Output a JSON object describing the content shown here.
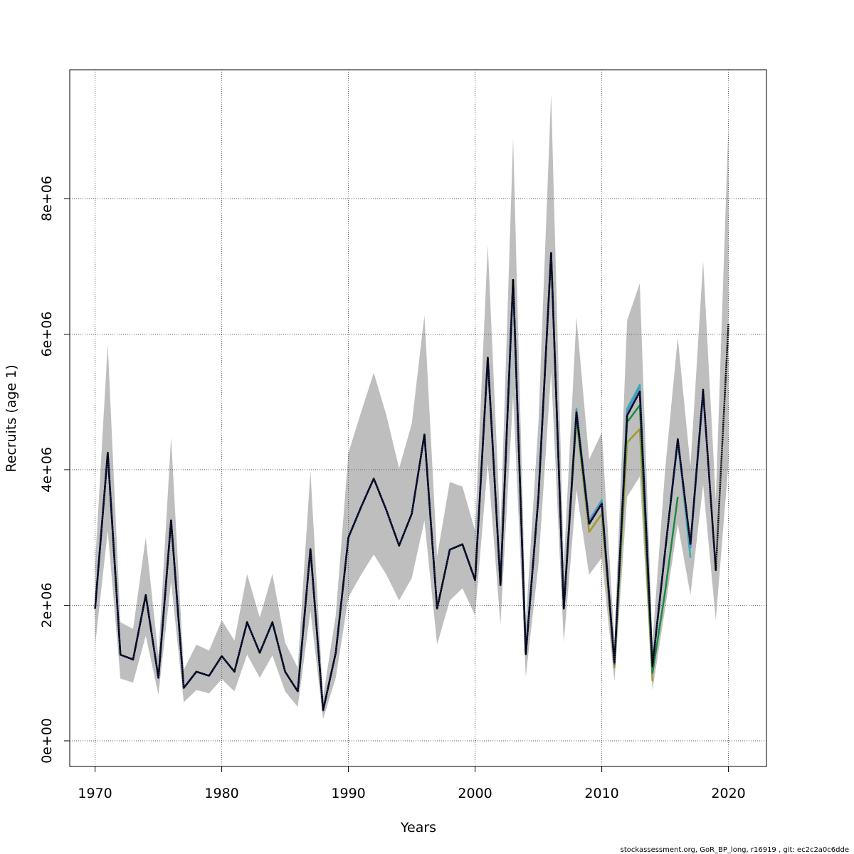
{
  "chart_data": {
    "type": "line",
    "xlabel": "Years",
    "ylabel": "Recruits (age 1)",
    "caption": "stockassessment.org, GoR_BP_long, r16919 , git: ec2c2a0c6dde",
    "x": [
      1970,
      1971,
      1972,
      1973,
      1974,
      1975,
      1976,
      1977,
      1978,
      1979,
      1980,
      1981,
      1982,
      1983,
      1984,
      1985,
      1986,
      1987,
      1988,
      1989,
      1990,
      1991,
      1992,
      1993,
      1994,
      1995,
      1996,
      1997,
      1998,
      1999,
      2000,
      2001,
      2002,
      2003,
      2004,
      2005,
      2006,
      2007,
      2008,
      2009,
      2010,
      2011,
      2012,
      2013,
      2014,
      2015,
      2016,
      2017,
      2018,
      2019,
      2020
    ],
    "band": {
      "color": "#bebebe",
      "upper": [
        2600000,
        5850000,
        1750000,
        1650000,
        3000000,
        1250000,
        4480000,
        1050000,
        1420000,
        1330000,
        1780000,
        1480000,
        2460000,
        1820000,
        2460000,
        1450000,
        1080000,
        3980000,
        650000,
        1850000,
        4250000,
        4850000,
        5430000,
        4800000,
        4020000,
        4680000,
        6280000,
        2720000,
        3820000,
        3750000,
        3100000,
        7320000,
        3100000,
        8900000,
        1750000,
        4700000,
        9550000,
        2600000,
        6250000,
        4150000,
        4550000,
        1500000,
        6200000,
        6750000,
        1450000,
        4000000,
        5950000,
        4050000,
        7080000,
        3550000,
        9100000
      ],
      "lower": [
        1400000,
        3100000,
        920000,
        860000,
        1550000,
        680000,
        2350000,
        570000,
        750000,
        700000,
        910000,
        730000,
        1270000,
        930000,
        1260000,
        730000,
        500000,
        1920000,
        320000,
        930000,
        2120000,
        2450000,
        2750000,
        2450000,
        2070000,
        2400000,
        3250000,
        1420000,
        2070000,
        2250000,
        1850000,
        4100000,
        1720000,
        5100000,
        950000,
        2600000,
        5450000,
        1450000,
        3700000,
        2450000,
        2700000,
        880000,
        3600000,
        3900000,
        750000,
        1950000,
        3200000,
        2150000,
        3780000,
        1780000,
        4100000
      ]
    },
    "series": [
      {
        "color": "#000000",
        "values": [
          1950000,
          4250000,
          1270000,
          1200000,
          2150000,
          930000,
          3250000,
          780000,
          1020000,
          960000,
          1250000,
          1020000,
          1750000,
          1300000,
          1750000,
          1020000,
          730000,
          2830000,
          450000,
          1300000,
          3000000,
          3450000,
          3870000,
          3400000,
          2880000,
          3350000,
          4520000,
          1950000,
          2820000,
          2900000,
          2370000,
          5650000,
          2300000,
          6800000,
          1280000,
          3600000,
          7200000,
          1950000,
          4850000,
          3200000,
          3500000,
          1150000,
          4800000,
          5150000,
          1100000,
          2800000,
          4450000,
          2900000,
          5180000,
          2520000,
          6150000
        ]
      },
      {
        "color": "#27246e",
        "values": [
          1950000,
          4250000,
          1270000,
          1200000,
          2150000,
          930000,
          3250000,
          780000,
          1020000,
          960000,
          1250000,
          1020000,
          1750000,
          1300000,
          1750000,
          1020000,
          730000,
          2830000,
          450000,
          1300000,
          3000000,
          3450000,
          3870000,
          3400000,
          2880000,
          3350000,
          4520000,
          1950000,
          2820000,
          2900000,
          2370000,
          5650000,
          2300000,
          6800000,
          1280000,
          3600000,
          7200000,
          1950000,
          4850000,
          3200000,
          3500000,
          1150000,
          4800000,
          5150000,
          1100000,
          2800000,
          4450000,
          2900000,
          5150000,
          2520000,
          null
        ]
      },
      {
        "color": "#5b8fd6",
        "values": [
          1950000,
          4250000,
          1270000,
          1200000,
          2150000,
          930000,
          3250000,
          780000,
          1020000,
          960000,
          1250000,
          1020000,
          1750000,
          1300000,
          1750000,
          1020000,
          730000,
          2830000,
          450000,
          1300000,
          3000000,
          3450000,
          3870000,
          3400000,
          2880000,
          3350000,
          4520000,
          1950000,
          2820000,
          2900000,
          2370000,
          5650000,
          2300000,
          6800000,
          1280000,
          3600000,
          7200000,
          1950000,
          4880000,
          3250000,
          3520000,
          1150000,
          4850000,
          5200000,
          1120000,
          2800000,
          4400000,
          2850000,
          5100000,
          null,
          null
        ]
      },
      {
        "color": "#2fb0a8",
        "values": [
          1950000,
          4250000,
          1270000,
          1200000,
          2150000,
          930000,
          3250000,
          780000,
          1020000,
          960000,
          1250000,
          1020000,
          1750000,
          1300000,
          1750000,
          1020000,
          730000,
          2830000,
          450000,
          1300000,
          3000000,
          3450000,
          3870000,
          3400000,
          2880000,
          3350000,
          4520000,
          1950000,
          2820000,
          2900000,
          2370000,
          5650000,
          2300000,
          6800000,
          1280000,
          3600000,
          7200000,
          1950000,
          4900000,
          3250000,
          3550000,
          1150000,
          4900000,
          5250000,
          1120000,
          2800000,
          4450000,
          2700000,
          null,
          null,
          null
        ]
      },
      {
        "color": "#1b8a3e",
        "values": [
          1950000,
          4250000,
          1270000,
          1200000,
          2150000,
          930000,
          3250000,
          780000,
          1020000,
          960000,
          1250000,
          1020000,
          1750000,
          1300000,
          1750000,
          1020000,
          730000,
          2830000,
          450000,
          1300000,
          3000000,
          3450000,
          3870000,
          3400000,
          2880000,
          3350000,
          4520000,
          1950000,
          2820000,
          2900000,
          2370000,
          5650000,
          2300000,
          6800000,
          1280000,
          3600000,
          7200000,
          1950000,
          4800000,
          3200000,
          3500000,
          1130000,
          4700000,
          4950000,
          1000000,
          2200000,
          3600000,
          null,
          null,
          null,
          null
        ]
      },
      {
        "color": "#9e9a30",
        "values": [
          1950000,
          4250000,
          1270000,
          1200000,
          2150000,
          930000,
          3250000,
          780000,
          1020000,
          960000,
          1250000,
          1020000,
          1750000,
          1300000,
          1750000,
          1020000,
          730000,
          2830000,
          450000,
          1300000,
          3000000,
          3450000,
          3870000,
          3400000,
          2880000,
          3350000,
          4520000,
          1950000,
          2820000,
          2900000,
          2370000,
          5650000,
          2300000,
          6800000,
          1280000,
          3600000,
          7200000,
          1950000,
          4750000,
          3080000,
          3350000,
          1080000,
          4400000,
          4600000,
          880000,
          null,
          null,
          null,
          null,
          null,
          null
        ]
      }
    ],
    "xlim": [
      1968,
      2023
    ],
    "ylim": [
      -378000,
      9900000
    ],
    "xticks": [
      1970,
      1980,
      1990,
      2000,
      2010,
      2020
    ],
    "yticks": [
      {
        "value": 0,
        "label": "0e+00"
      },
      {
        "value": 2000000,
        "label": "2e+06"
      },
      {
        "value": 4000000,
        "label": "4e+06"
      },
      {
        "value": 6000000,
        "label": "6e+06"
      },
      {
        "value": 8000000,
        "label": "8e+06"
      }
    ],
    "grid": true
  }
}
